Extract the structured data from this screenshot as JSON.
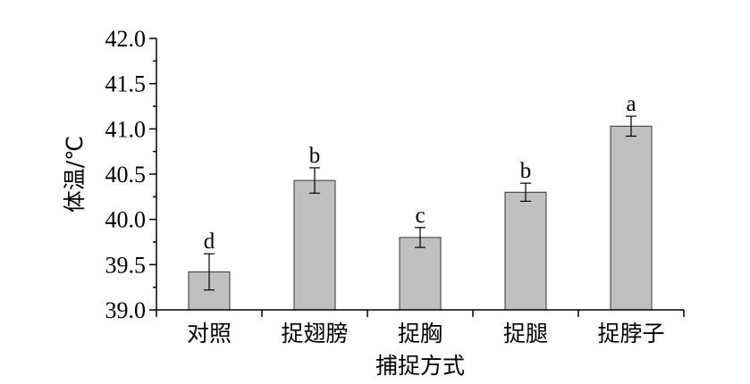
{
  "chart_data": {
    "type": "bar",
    "xlabel": "捕捉方式",
    "ylabel": "体温/℃",
    "ylim": [
      39.0,
      42.0
    ],
    "yticks": [
      "39.0",
      "39.5",
      "40.0",
      "40.5",
      "41.0",
      "41.5",
      "42.0"
    ],
    "categories": [
      "对照",
      "捉翅膀",
      "捉胸",
      "捉腿",
      "捉脖子"
    ],
    "values": [
      39.42,
      40.43,
      39.8,
      40.3,
      41.03
    ],
    "errors": [
      0.2,
      0.14,
      0.11,
      0.1,
      0.11
    ],
    "significance": [
      "d",
      "b",
      "c",
      "b",
      "a"
    ],
    "bar_color": "#c0c0c0",
    "grid": false,
    "legend": "none"
  }
}
